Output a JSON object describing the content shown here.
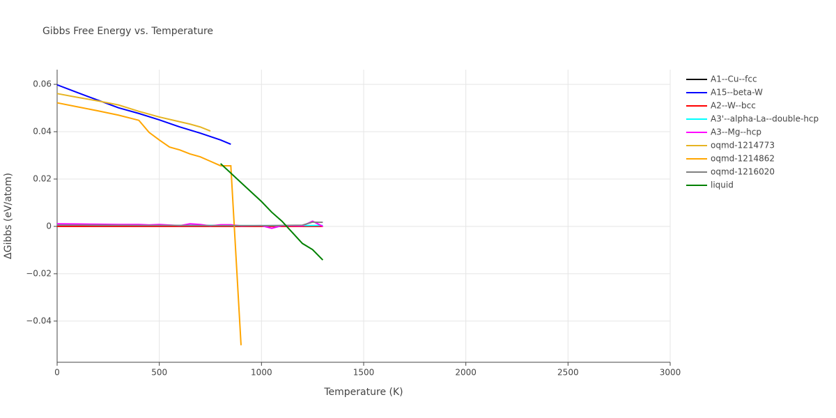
{
  "chart_data": {
    "type": "line",
    "title": "Gibbs Free Energy vs. Temperature",
    "x_label": "Temperature (K)",
    "y_label": "ΔGibbs (eV/atom)",
    "xlim": [
      0,
      3000
    ],
    "xticks": [
      0,
      500,
      1000,
      1500,
      2000,
      2500,
      3000
    ],
    "ylim": [
      -0.0574,
      0.0662
    ],
    "yticks": [
      {
        "value": -0.04,
        "label": "−0.04"
      },
      {
        "value": -0.02,
        "label": "−0.02"
      },
      0,
      0.02,
      0.04,
      0.06
    ],
    "grid": true,
    "legend": "right",
    "series": [
      {
        "name": "A1--Cu--fcc",
        "color": "#000000",
        "x": [
          0,
          1300
        ],
        "values": [
          0,
          0
        ]
      },
      {
        "name": "A15--beta-W",
        "color": "#0000ff",
        "x": [
          0,
          100,
          200,
          300,
          400,
          500,
          600,
          700,
          800,
          850
        ],
        "values": [
          0.0598,
          0.0565,
          0.0533,
          0.0501,
          0.0477,
          0.045,
          0.042,
          0.0394,
          0.0365,
          0.0347
        ]
      },
      {
        "name": "A2--W--bcc",
        "color": "#ff0000",
        "x": [
          0,
          1300
        ],
        "values": [
          0,
          0
        ]
      },
      {
        "name": "A3'--alpha-La--double-hcp",
        "color": "#00ffff",
        "x": [
          0,
          100,
          200,
          300,
          400,
          500,
          600,
          700,
          800,
          900,
          1000,
          1100,
          1200,
          1300
        ],
        "values": [
          0.0006,
          0.0006,
          0.0005,
          0.0005,
          0.0005,
          0.0005,
          0.0004,
          0.0004,
          0.0004,
          0.0003,
          0.0003,
          0.0003,
          0.0003,
          0.0004
        ]
      },
      {
        "name": "A3--Mg--hcp",
        "color": "#ff00ff",
        "x": [
          0,
          100,
          200,
          300,
          400,
          450,
          500,
          600,
          650,
          700,
          750,
          800,
          850,
          900,
          1000,
          1050,
          1100,
          1200,
          1250,
          1300
        ],
        "values": [
          0.0011,
          0.001,
          0.0009,
          0.0008,
          0.0008,
          0.0006,
          0.0008,
          0.0003,
          0.0011,
          0.0008,
          0.0002,
          0.0007,
          0.0007,
          0.0002,
          0.0003,
          -0.0008,
          0.0003,
          0.0002,
          0.0022,
          0.0
        ]
      },
      {
        "name": "oqmd-1214773",
        "color": "#e6b422",
        "x": [
          0,
          100,
          200,
          300,
          400,
          500,
          600,
          650,
          700,
          750
        ],
        "values": [
          0.0561,
          0.0545,
          0.053,
          0.0513,
          0.0486,
          0.0462,
          0.0442,
          0.0432,
          0.042,
          0.0403
        ]
      },
      {
        "name": "oqmd-1214862",
        "color": "#ffa500",
        "x": [
          0,
          100,
          200,
          300,
          400,
          450,
          500,
          550,
          600,
          650,
          700,
          750,
          800,
          850,
          900
        ],
        "values": [
          0.0522,
          0.0505,
          0.0488,
          0.047,
          0.0448,
          0.0397,
          0.0365,
          0.0335,
          0.0323,
          0.0306,
          0.0294,
          0.0275,
          0.0256,
          0.0256,
          -0.0502
        ]
      },
      {
        "name": "oqmd-1216020",
        "color": "#808080",
        "x": [
          0,
          200,
          400,
          600,
          800,
          1000,
          1100,
          1200,
          1250,
          1300
        ],
        "values": [
          0.0005,
          0.0005,
          0.0004,
          0.0004,
          0.0003,
          0.0003,
          0.0004,
          0.0005,
          0.0018,
          0.0017
        ]
      },
      {
        "name": "liquid",
        "color": "#008000",
        "x": [
          800,
          900,
          1000,
          1050,
          1100,
          1150,
          1200,
          1250,
          1300
        ],
        "values": [
          0.0265,
          0.0185,
          0.0105,
          0.006,
          0.0022,
          -0.0025,
          -0.0072,
          -0.0098,
          -0.0142
        ]
      }
    ]
  }
}
